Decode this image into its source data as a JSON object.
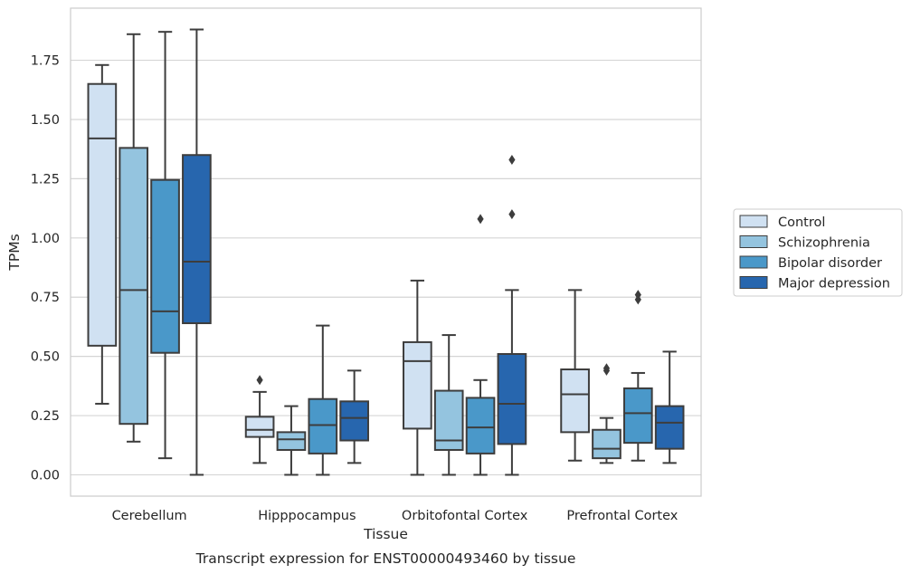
{
  "chart_data": {
    "type": "box",
    "xlabel": "Tissue",
    "ylabel": "TPMs",
    "caption": "Transcript expression for ENST00000493460 by tissue",
    "ylim": [
      -0.09,
      1.97
    ],
    "yticks": [
      "0.00",
      "0.25",
      "0.50",
      "0.75",
      "1.00",
      "1.25",
      "1.50",
      "1.75"
    ],
    "grid": true,
    "legend_position": "right",
    "categories": [
      "Cerebellum",
      "Hipppocampus",
      "Orbitofontal Cortex",
      "Prefrontal Cortex"
    ],
    "series": [
      {
        "name": "Control",
        "color": "#d0e1f2",
        "boxes": [
          {
            "whisker_low": 0.3,
            "q1": 0.545,
            "median": 1.42,
            "q3": 1.65,
            "whisker_high": 1.73,
            "outliers": []
          },
          {
            "whisker_low": 0.05,
            "q1": 0.16,
            "median": 0.19,
            "q3": 0.245,
            "whisker_high": 0.35,
            "outliers": [
              0.4
            ]
          },
          {
            "whisker_low": 0.0,
            "q1": 0.195,
            "median": 0.48,
            "q3": 0.56,
            "whisker_high": 0.82,
            "outliers": []
          },
          {
            "whisker_low": 0.06,
            "q1": 0.18,
            "median": 0.34,
            "q3": 0.445,
            "whisker_high": 0.78,
            "outliers": []
          }
        ]
      },
      {
        "name": "Schizophrenia",
        "color": "#94c4df",
        "boxes": [
          {
            "whisker_low": 0.14,
            "q1": 0.215,
            "median": 0.78,
            "q3": 1.38,
            "whisker_high": 1.86,
            "outliers": []
          },
          {
            "whisker_low": 0.0,
            "q1": 0.105,
            "median": 0.15,
            "q3": 0.18,
            "whisker_high": 0.29,
            "outliers": []
          },
          {
            "whisker_low": 0.0,
            "q1": 0.105,
            "median": 0.145,
            "q3": 0.355,
            "whisker_high": 0.59,
            "outliers": []
          },
          {
            "whisker_low": 0.05,
            "q1": 0.07,
            "median": 0.11,
            "q3": 0.19,
            "whisker_high": 0.24,
            "outliers": [
              0.44,
              0.45
            ]
          }
        ]
      },
      {
        "name": "Bipolar disorder",
        "color": "#4a98c9",
        "boxes": [
          {
            "whisker_low": 0.07,
            "q1": 0.515,
            "median": 0.69,
            "q3": 1.245,
            "whisker_high": 1.87,
            "outliers": []
          },
          {
            "whisker_low": 0.0,
            "q1": 0.09,
            "median": 0.21,
            "q3": 0.32,
            "whisker_high": 0.63,
            "outliers": []
          },
          {
            "whisker_low": 0.0,
            "q1": 0.09,
            "median": 0.2,
            "q3": 0.325,
            "whisker_high": 0.4,
            "outliers": [
              1.08
            ]
          },
          {
            "whisker_low": 0.06,
            "q1": 0.135,
            "median": 0.26,
            "q3": 0.365,
            "whisker_high": 0.43,
            "outliers": [
              0.74,
              0.76
            ]
          }
        ]
      },
      {
        "name": "Major depression",
        "color": "#2766ae",
        "boxes": [
          {
            "whisker_low": 0.0,
            "q1": 0.64,
            "median": 0.9,
            "q3": 1.35,
            "whisker_high": 1.88,
            "outliers": []
          },
          {
            "whisker_low": 0.05,
            "q1": 0.145,
            "median": 0.24,
            "q3": 0.31,
            "whisker_high": 0.44,
            "outliers": []
          },
          {
            "whisker_low": 0.0,
            "q1": 0.13,
            "median": 0.3,
            "q3": 0.51,
            "whisker_high": 0.78,
            "outliers": [
              1.1,
              1.33
            ]
          },
          {
            "whisker_low": 0.05,
            "q1": 0.11,
            "median": 0.22,
            "q3": 0.29,
            "whisker_high": 0.52,
            "outliers": []
          }
        ]
      }
    ]
  }
}
